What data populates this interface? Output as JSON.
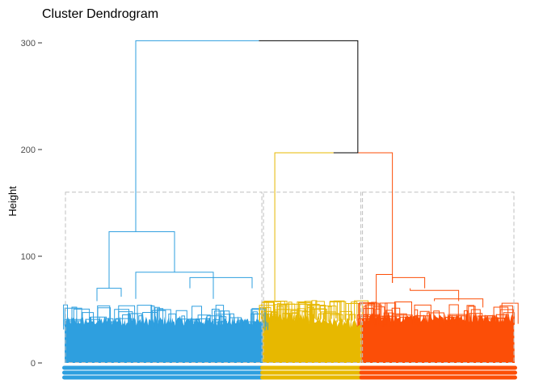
{
  "chart_data": {
    "type": "dendrogram",
    "title": "Cluster Dendrogram",
    "ylabel": "Height",
    "xlabel": "",
    "ylim": [
      0,
      300
    ],
    "yticks": [
      0,
      100,
      200,
      300
    ],
    "grid": false,
    "cut_height": 160,
    "clusters": [
      {
        "color": "#2e9fdf",
        "merge_height": 123,
        "leaf_share": 0.44
      },
      {
        "color": "#e7b800",
        "merge_height": 58,
        "leaf_share": 0.22
      },
      {
        "color": "#fc4e07",
        "merge_height": 83,
        "leaf_share": 0.34
      }
    ],
    "merges": [
      {
        "height": 197,
        "joins": "clusters 2 and 3",
        "color": "#fc4e07"
      },
      {
        "height": 302,
        "joins": "cluster 1 and merge at 197",
        "color": "#000000"
      }
    ]
  }
}
